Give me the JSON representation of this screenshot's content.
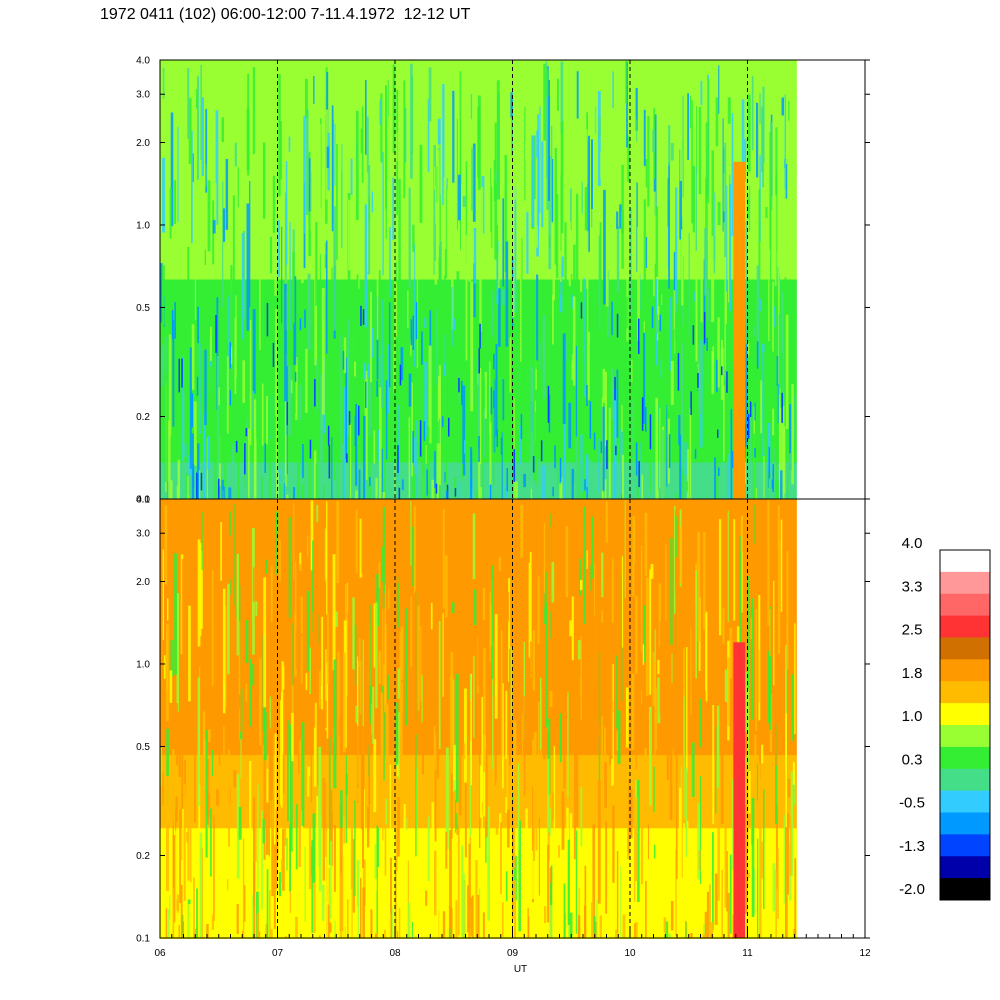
{
  "title": "1972 0411 (102) 06:00-12:00 7-11.4.1972  12-12 UT",
  "chart_data": [
    {
      "type": "heatmap",
      "panel": "top",
      "ylabel": "",
      "yscale": "log",
      "ylim": [
        0.1,
        4.0
      ],
      "yticks": [
        "0.1",
        "0.2",
        "0.5",
        "1.0",
        "2.0",
        "3.0",
        "4.0"
      ],
      "xlim": [
        6,
        12
      ],
      "data_extent_x": [
        6,
        11.42
      ],
      "dashed_marker_hours": [
        7,
        8,
        9,
        10,
        11
      ],
      "dominant_band_low_freq": "green",
      "dominant_band_high_freq": "green-yellow",
      "notable_feature": {
        "x_range": [
          10.88,
          10.98
        ],
        "y_range": [
          0.1,
          1.7
        ],
        "level": "orange"
      }
    },
    {
      "type": "heatmap",
      "panel": "bottom",
      "ylabel": "",
      "yscale": "log",
      "ylim": [
        0.1,
        4.0
      ],
      "yticks": [
        "0.1",
        "0.2",
        "0.5",
        "1.0",
        "2.0",
        "3.0",
        "4.0"
      ],
      "xlim": [
        6,
        12
      ],
      "xticks": [
        "06",
        "07",
        "08",
        "09",
        "10",
        "11",
        "12"
      ],
      "xlabel": "UT",
      "data_extent_x": [
        6,
        11.42
      ],
      "dashed_marker_hours": [
        7,
        8,
        9,
        10,
        11
      ],
      "dominant_band_low_freq": "yellow",
      "dominant_band_high_freq": "orange",
      "notable_feature": {
        "x_range": [
          10.88,
          10.98
        ],
        "y_range": [
          0.1,
          1.2
        ],
        "level": "red"
      }
    }
  ],
  "colorbar": {
    "labels": [
      "4.0",
      "3.3",
      "2.5",
      "1.8",
      "1.0",
      "0.3",
      "-0.5",
      "-1.3",
      "-2.0"
    ],
    "colors": [
      "#ffffff",
      "#ff9999",
      "#ff6666",
      "#ff3333",
      "#d07000",
      "#ff9900",
      "#ffbb00",
      "#ffff00",
      "#99ff33",
      "#33ee33",
      "#44dd88",
      "#33ccff",
      "#0099ff",
      "#0044ff",
      "#0000aa",
      "#000000"
    ]
  }
}
